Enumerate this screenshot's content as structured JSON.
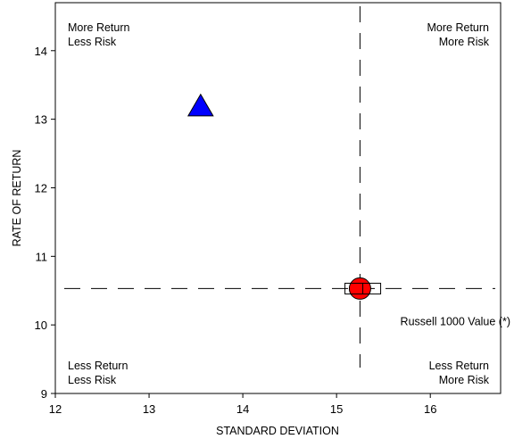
{
  "chart_data": {
    "type": "scatter",
    "title": "",
    "xlabel": "STANDARD DEVIATION",
    "ylabel": "RATE OF RETURN",
    "xlim": [
      12,
      16.75
    ],
    "ylim": [
      9,
      14.7
    ],
    "x_ticks": [
      12,
      13,
      14,
      15,
      16
    ],
    "y_ticks": [
      9,
      10,
      11,
      12,
      13,
      14
    ],
    "grid": false,
    "reference_lines": {
      "x": 15.25,
      "y": 10.53
    },
    "quadrant_labels": {
      "top_left": [
        "More Return",
        "Less Risk"
      ],
      "top_right": [
        "More Return",
        "More Risk"
      ],
      "bottom_left": [
        "Less Return",
        "Less Risk"
      ],
      "bottom_right": [
        "Less Return",
        "More Risk"
      ]
    },
    "points": [
      {
        "shape": "triangle",
        "x": 13.55,
        "y": 13.18,
        "color": "#0000ff",
        "label": ""
      },
      {
        "shape": "circle",
        "x": 15.25,
        "y": 10.53,
        "color": "#ff0000",
        "label": ""
      },
      {
        "shape": "square",
        "x": 15.28,
        "y": 10.53,
        "color": "#ffffff",
        "label": "Russell 1000 Value (*)"
      }
    ]
  }
}
